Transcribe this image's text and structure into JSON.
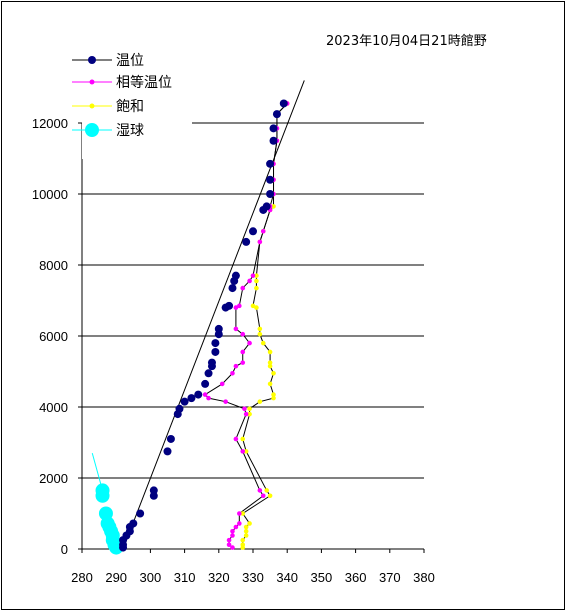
{
  "chart_data": {
    "type": "scatter",
    "title": "2023年10月04日21時館野",
    "xlim": [
      280,
      380
    ],
    "ylim": [
      0,
      12000
    ],
    "x_ticks": [
      "280",
      "290",
      "300",
      "310",
      "320",
      "330",
      "340",
      "350",
      "360",
      "370",
      "380"
    ],
    "y_ticks": [
      "0",
      "2000",
      "4000",
      "6000",
      "8000",
      "10000",
      "12000"
    ],
    "grid": "horizontal",
    "legend_position": "top-left",
    "series": [
      {
        "name": "温位",
        "color": "#000080",
        "marker": "circle",
        "points": [
          [
            292,
            40
          ],
          [
            292,
            120
          ],
          [
            292,
            250
          ],
          [
            293,
            380
          ],
          [
            294,
            500
          ],
          [
            294,
            620
          ],
          [
            295,
            720
          ],
          [
            297,
            1000
          ],
          [
            301,
            1500
          ],
          [
            301,
            1650
          ],
          [
            305,
            2750
          ],
          [
            306,
            3100
          ],
          [
            308,
            3800
          ],
          [
            308.5,
            3950
          ],
          [
            310,
            4150
          ],
          [
            312,
            4250
          ],
          [
            314,
            4350
          ],
          [
            316,
            4650
          ],
          [
            317,
            4950
          ],
          [
            318,
            5150
          ],
          [
            318,
            5250
          ],
          [
            319,
            5550
          ],
          [
            319,
            5800
          ],
          [
            320,
            6050
          ],
          [
            320,
            6200
          ],
          [
            322,
            6800
          ],
          [
            323,
            6850
          ],
          [
            324,
            7350
          ],
          [
            324.5,
            7550
          ],
          [
            325,
            7700
          ],
          [
            328,
            8650
          ],
          [
            330,
            8950
          ],
          [
            333,
            9550
          ],
          [
            334,
            9650
          ],
          [
            335,
            10000
          ],
          [
            335,
            10400
          ],
          [
            335,
            10850
          ],
          [
            336,
            11500
          ],
          [
            336,
            11850
          ],
          [
            337,
            12250
          ],
          [
            339,
            12550
          ]
        ],
        "line": [
          [
            292,
            0
          ],
          [
            345,
            13200
          ]
        ]
      },
      {
        "name": "相等温位",
        "color": "#ff00ff",
        "marker": "small-dot",
        "points": [
          [
            324,
            40
          ],
          [
            323,
            120
          ],
          [
            323,
            250
          ],
          [
            324,
            380
          ],
          [
            324,
            500
          ],
          [
            325,
            620
          ],
          [
            326,
            720
          ],
          [
            326,
            1000
          ],
          [
            333,
            1500
          ],
          [
            332,
            1650
          ],
          [
            327,
            2750
          ],
          [
            325,
            3100
          ],
          [
            328,
            3800
          ],
          [
            327.5,
            3950
          ],
          [
            322,
            4150
          ],
          [
            317,
            4250
          ],
          [
            316,
            4350
          ],
          [
            321,
            4650
          ],
          [
            324,
            4950
          ],
          [
            325,
            5150
          ],
          [
            327,
            5250
          ],
          [
            327,
            5550
          ],
          [
            329,
            5800
          ],
          [
            327,
            6050
          ],
          [
            325,
            6200
          ],
          [
            325,
            6800
          ],
          [
            326,
            6850
          ],
          [
            327,
            7350
          ],
          [
            329,
            7550
          ],
          [
            330,
            7700
          ],
          [
            332,
            8650
          ],
          [
            333,
            8950
          ],
          [
            335,
            9550
          ],
          [
            335,
            9650
          ],
          [
            336,
            10000
          ],
          [
            336,
            10400
          ],
          [
            336,
            10850
          ],
          [
            337,
            11500
          ],
          [
            337,
            11850
          ],
          [
            337,
            12250
          ],
          [
            340,
            12550
          ]
        ]
      },
      {
        "name": "飽和",
        "color": "#ffff00",
        "marker": "small-dot",
        "points": [
          [
            327,
            40
          ],
          [
            327,
            120
          ],
          [
            327,
            250
          ],
          [
            328,
            380
          ],
          [
            328,
            500
          ],
          [
            328,
            620
          ],
          [
            329,
            720
          ],
          [
            327,
            1000
          ],
          [
            335,
            1500
          ],
          [
            334,
            1650
          ],
          [
            328,
            2750
          ],
          [
            327,
            3100
          ],
          [
            329,
            3800
          ],
          [
            329,
            3950
          ],
          [
            332,
            4150
          ],
          [
            336,
            4250
          ],
          [
            336,
            4350
          ],
          [
            335,
            4650
          ],
          [
            336,
            4950
          ],
          [
            335,
            5150
          ],
          [
            335,
            5250
          ],
          [
            335,
            5550
          ],
          [
            333,
            5800
          ],
          [
            332,
            6050
          ],
          [
            332,
            6200
          ],
          [
            331,
            6800
          ],
          [
            330,
            6850
          ],
          [
            331,
            7350
          ],
          [
            331,
            7550
          ],
          [
            331,
            7700
          ],
          [
            332,
            8650
          ],
          [
            333,
            8950
          ],
          [
            335,
            9550
          ],
          [
            336,
            9650
          ],
          [
            336,
            10000
          ],
          [
            336,
            10400
          ],
          [
            336,
            10850
          ],
          [
            337,
            11500
          ],
          [
            337,
            11850
          ],
          [
            337,
            12250
          ],
          [
            340,
            12550
          ]
        ]
      },
      {
        "name": "湿球",
        "color": "#00ffff",
        "marker": "large-circle",
        "points": [
          [
            290,
            40
          ],
          [
            289.5,
            120
          ],
          [
            289,
            250
          ],
          [
            289,
            380
          ],
          [
            288.5,
            500
          ],
          [
            288,
            620
          ],
          [
            287.5,
            720
          ],
          [
            287,
            1000
          ],
          [
            286,
            1500
          ],
          [
            286,
            1650
          ]
        ],
        "line": [
          [
            286,
            1650
          ],
          [
            283,
            2700
          ]
        ]
      }
    ]
  }
}
